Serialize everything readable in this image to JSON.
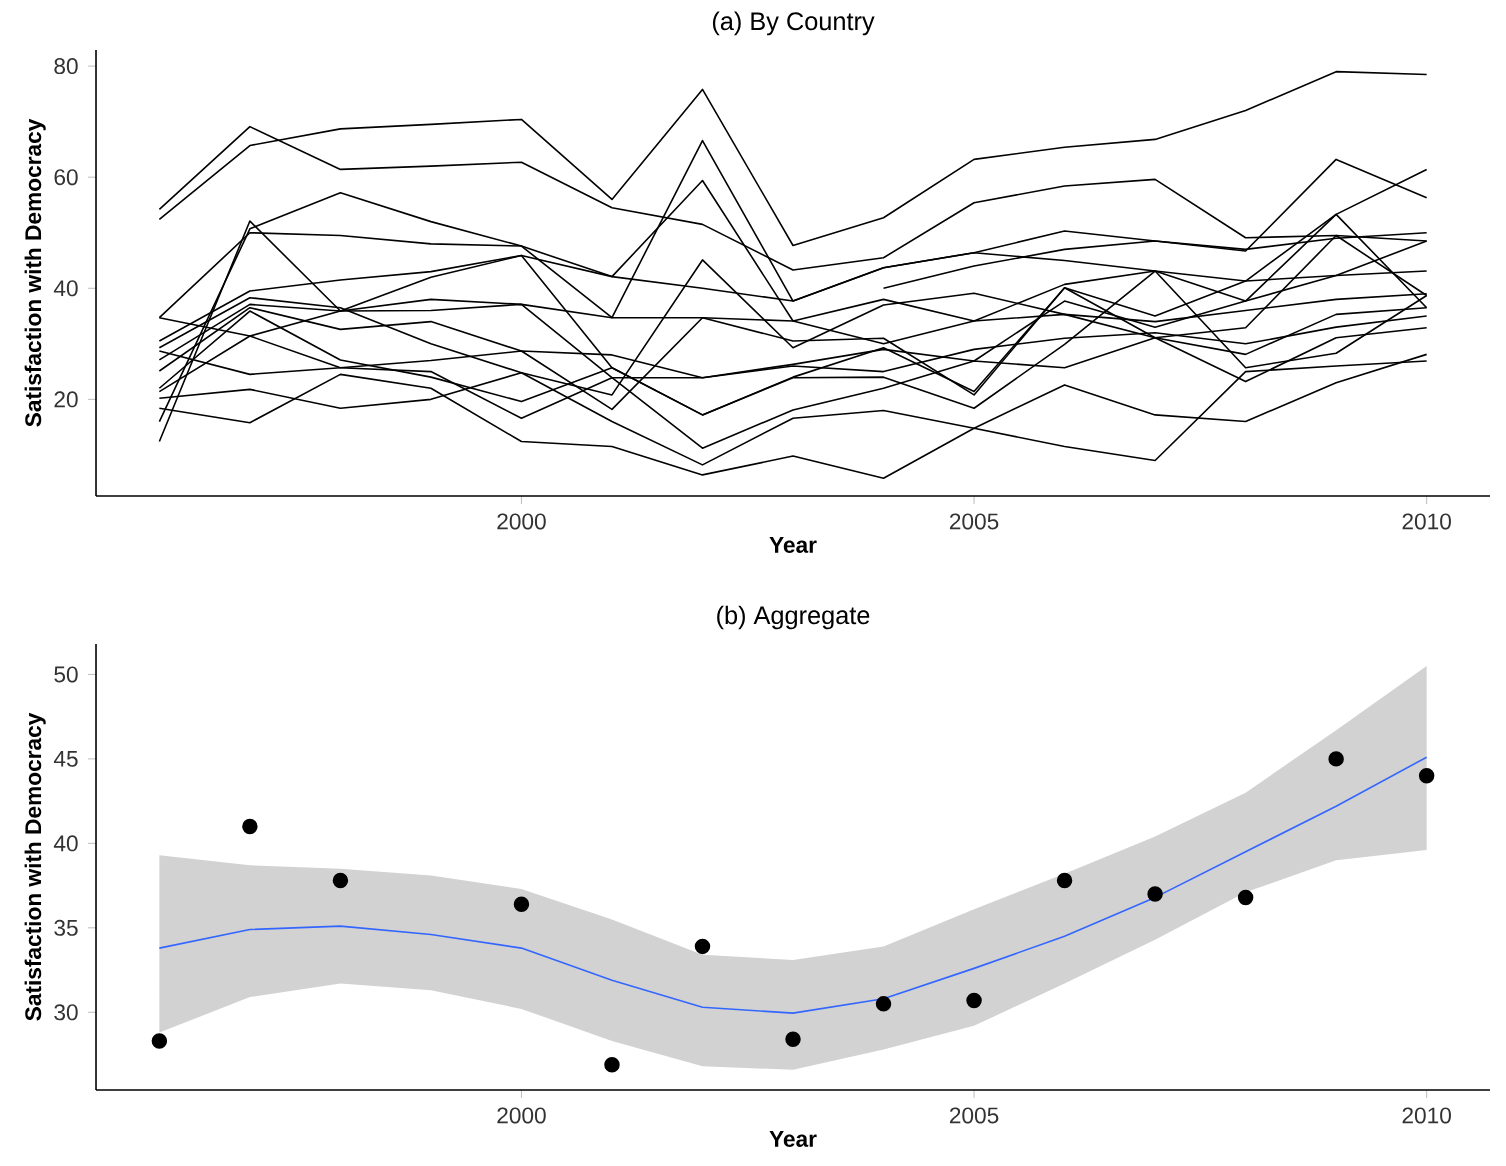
{
  "chart_data": [
    {
      "type": "line",
      "title": "(a) By Country",
      "xlabel": "Year",
      "ylabel": "Satisfaction with Democracy",
      "x": [
        1996,
        1997,
        1998,
        1999,
        2000,
        2001,
        2002,
        2003,
        2004,
        2005,
        2006,
        2007,
        2008,
        2009,
        2010
      ],
      "xlim": [
        1995.3,
        2010.7
      ],
      "ylim": [
        2.6,
        82.9
      ],
      "xticks": [
        2000,
        2005,
        2010
      ],
      "yticks": [
        20,
        40,
        60,
        80
      ],
      "series": [
        {
          "color": "#000000",
          "values": [
            52.4,
            65.7,
            68.7,
            69.5,
            70.4,
            56.0,
            75.8,
            47.7,
            52.7,
            63.2,
            65.4,
            66.8,
            72.0,
            79.0,
            78.5
          ]
        },
        {
          "color": "#000000",
          "values": [
            54.2,
            69.1,
            61.4,
            62.0,
            62.7,
            54.5,
            51.5,
            43.3,
            45.5,
            55.4,
            58.4,
            59.6,
            49.1,
            49.5,
            48.5
          ]
        },
        {
          "color": "#000000",
          "values": [
            16.0,
            50.7,
            57.2,
            52.0,
            47.6,
            34.7,
            66.6,
            37.7,
            43.7,
            46.4,
            50.3,
            48.5,
            46.7,
            63.2,
            56.3
          ]
        },
        {
          "color": "#000000",
          "values": [
            12.4,
            52.1,
            35.9,
            42.0,
            45.9,
            42.1,
            59.4,
            34.1,
            38.0,
            34.1,
            40.7,
            43.1,
            37.7,
            53.3,
            61.4
          ]
        },
        {
          "color": "#000000",
          "values": [
            34.7,
            50.0,
            49.5,
            48.0,
            47.6,
            42.1,
            40.0,
            37.7,
            43.7,
            46.4,
            45.0,
            43.1,
            41.3,
            42.3,
            43.1
          ]
        },
        {
          "color": "#000000",
          "values": [
            30.5,
            39.5,
            41.5,
            43.0,
            45.9,
            25.7,
            17.2,
            24.0,
            29.3,
            21.4,
            40.1,
            31.1,
            32.9,
            49.5,
            38.7
          ]
        },
        {
          "color": "#000000",
          "values": [
            29.3,
            38.3,
            36.5,
            30.0,
            24.8,
            20.8,
            45.1,
            29.3,
            37.0,
            39.1,
            35.3,
            31.1,
            28.1,
            35.3,
            36.5
          ]
        },
        {
          "color": "#000000",
          "values": [
            27.1,
            37.1,
            35.9,
            36.0,
            37.1,
            23.9,
            23.9,
            26.3,
            29.0,
            26.9,
            37.7,
            33.0,
            37.7,
            42.3,
            48.5
          ]
        },
        {
          "color": "#000000",
          "values": [
            25.1,
            36.5,
            32.6,
            34.0,
            28.7,
            18.2,
            34.7,
            30.5,
            31.0,
            20.8,
            40.1,
            35.0,
            41.3,
            53.3,
            36.5
          ]
        },
        {
          "color": "#000000",
          "values": [
            22.0,
            35.9,
            27.1,
            24.0,
            19.6,
            25.7,
            17.2,
            23.9,
            24.0,
            18.4,
            29.9,
            43.1,
            25.7,
            28.3,
            38.7
          ]
        },
        {
          "color": "#000000",
          "values": [
            21.4,
            31.4,
            25.7,
            25.0,
            16.6,
            23.9,
            11.2,
            18.1,
            22.0,
            26.9,
            25.7,
            31.1,
            23.2,
            31.1,
            32.9
          ]
        },
        {
          "color": "#000000",
          "values": [
            20.2,
            21.8,
            18.4,
            20.0,
            24.8,
            16.0,
            8.2,
            16.6,
            18.0,
            14.8,
            22.6,
            17.2,
            16.0,
            23.0,
            28.1
          ]
        },
        {
          "color": "#000000",
          "values": [
            18.4,
            15.8,
            24.5,
            22.0,
            12.4,
            11.5,
            6.4,
            9.8,
            5.8,
            14.8,
            11.5,
            9.0,
            25.0,
            26.0,
            26.9
          ]
        },
        {
          "color": "#000000",
          "values": [
            34.7,
            31.4,
            35.9,
            38.0,
            37.1,
            34.7,
            34.7,
            34.1,
            30.0,
            34.1,
            35.3,
            34.0,
            36.0,
            38.0,
            39.0
          ]
        },
        {
          "color": "#000000",
          "values": [
            28.7,
            24.5,
            25.7,
            27.0,
            28.7,
            28.0,
            23.9,
            26.0,
            25.0,
            29.0,
            31.0,
            32.0,
            30.0,
            33.0,
            35.0
          ]
        },
        {
          "color": "#000000",
          "values": [
            null,
            null,
            null,
            null,
            null,
            null,
            null,
            null,
            40.0,
            44.0,
            47.0,
            48.5,
            47.0,
            49.0,
            50.0
          ]
        }
      ]
    },
    {
      "type": "scatter",
      "title": "(b) Aggregate",
      "xlabel": "Year",
      "ylabel": "Satisfaction with Democracy",
      "x": [
        1996,
        1997,
        1998,
        1999,
        2000,
        2001,
        2002,
        2003,
        2004,
        2005,
        2006,
        2007,
        2008,
        2009,
        2010
      ],
      "xlim": [
        1995.3,
        2010.7
      ],
      "ylim": [
        25.4,
        51.8
      ],
      "xticks": [
        2000,
        2005,
        2010
      ],
      "yticks": [
        30,
        35,
        40,
        45,
        50
      ],
      "series": [
        {
          "type": "line",
          "color": "#3366ff",
          "values": [
            33.8,
            34.9,
            35.1,
            34.6,
            33.8,
            31.9,
            30.3,
            29.95,
            30.8,
            32.6,
            34.5,
            36.8,
            39.5,
            42.2,
            45.1
          ],
          "lower": [
            28.8,
            30.9,
            31.7,
            31.3,
            30.2,
            28.3,
            26.8,
            26.6,
            27.8,
            29.2,
            31.7,
            34.3,
            37.1,
            39.0,
            39.6
          ],
          "upper": [
            39.3,
            38.7,
            38.5,
            38.1,
            37.3,
            35.5,
            33.4,
            33.1,
            33.9,
            36.1,
            38.2,
            40.4,
            43.0,
            46.7,
            50.5
          ]
        },
        {
          "color": "#000000",
          "marker": "circle",
          "values": [
            28.3,
            41.0,
            37.8,
            null,
            36.4,
            26.9,
            33.9,
            28.4,
            30.5,
            30.7,
            37.8,
            37.0,
            36.8,
            45.0,
            44.0
          ]
        }
      ]
    }
  ]
}
